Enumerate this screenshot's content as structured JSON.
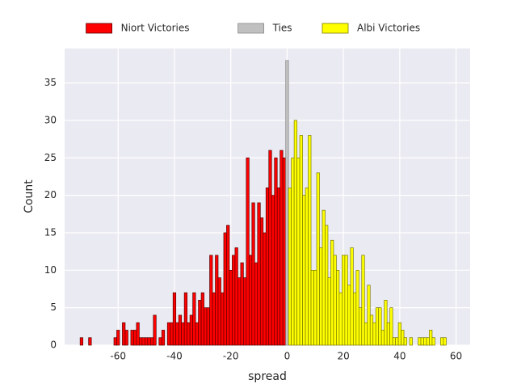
{
  "chart_data": {
    "type": "histogram",
    "xlabel": "spread",
    "ylabel": "Count",
    "xlim": [
      -79,
      65
    ],
    "ylim": [
      0,
      39.6
    ],
    "xticks": [
      -60,
      -40,
      -20,
      0,
      20,
      40,
      60
    ],
    "yticks": [
      0,
      5,
      10,
      15,
      20,
      25,
      30,
      35
    ],
    "grid": true,
    "legend": "top",
    "series": [
      {
        "name": "Niort Victories",
        "color": "#ff0000",
        "edgecolor": "#5a0000",
        "bins": [
          -73.5,
          -72.5,
          -71.5,
          -70.5,
          -69.5,
          -68.5,
          -67.5,
          -66.5,
          -65.5,
          -64.5,
          -63.5,
          -62.5,
          -61.5,
          -60.5,
          -59.5,
          -58.5,
          -57.5,
          -56.5,
          -55.5,
          -54.5,
          -53.5,
          -52.5,
          -51.5,
          -50.5,
          -49.5,
          -48.5,
          -47.5,
          -46.5,
          -45.5,
          -44.5,
          -43.5,
          -42.5,
          -41.5,
          -40.5,
          -39.5,
          -38.5,
          -37.5,
          -36.5,
          -35.5,
          -34.5,
          -33.5,
          -32.5,
          -31.5,
          -30.5,
          -29.5,
          -28.5,
          -27.5,
          -26.5,
          -25.5,
          -24.5,
          -23.5,
          -22.5,
          -21.5,
          -20.5,
          -19.5,
          -18.5,
          -17.5,
          -16.5,
          -15.5,
          -14.5,
          -13.5,
          -12.5,
          -11.5,
          -10.5,
          -9.5,
          -8.5,
          -7.5,
          -6.5,
          -5.5,
          -4.5,
          -3.5,
          -2.5,
          -1.5,
          -0.5
        ],
        "values": [
          1,
          0,
          0,
          1,
          0,
          0,
          0,
          0,
          0,
          0,
          0,
          0,
          1,
          2,
          0,
          3,
          2,
          0,
          2,
          2,
          3,
          1,
          1,
          1,
          1,
          1,
          4,
          0,
          1,
          2,
          0,
          3,
          3,
          7,
          3,
          4,
          3,
          7,
          3,
          4,
          7,
          3,
          6,
          7,
          5,
          5,
          12,
          7,
          12,
          9,
          7,
          15,
          16,
          10,
          12,
          13,
          9,
          11,
          9,
          25,
          12,
          19,
          11,
          19,
          17,
          15,
          21,
          26,
          20,
          25,
          21,
          26,
          25
        ]
      },
      {
        "name": "Ties",
        "color": "#c0c0c0",
        "edgecolor": "#8a8a8a",
        "bins": [
          -0.5,
          0.5
        ],
        "values": [
          38
        ]
      },
      {
        "name": "Albi Victories",
        "color": "#ffff00",
        "edgecolor": "#7a7a00",
        "bins": [
          0.5,
          1.5,
          2.5,
          3.5,
          4.5,
          5.5,
          6.5,
          7.5,
          8.5,
          9.5,
          10.5,
          11.5,
          12.5,
          13.5,
          14.5,
          15.5,
          16.5,
          17.5,
          18.5,
          19.5,
          20.5,
          21.5,
          22.5,
          23.5,
          24.5,
          25.5,
          26.5,
          27.5,
          28.5,
          29.5,
          30.5,
          31.5,
          32.5,
          33.5,
          34.5,
          35.5,
          36.5,
          37.5,
          38.5,
          39.5,
          40.5,
          41.5,
          42.5,
          43.5,
          44.5,
          45.5,
          46.5,
          47.5,
          48.5,
          49.5,
          50.5,
          51.5,
          52.5,
          53.5,
          54.5,
          55.5,
          56.5
        ],
        "values": [
          21,
          25,
          30,
          25,
          28,
          20,
          21,
          28,
          10,
          10,
          23,
          13,
          18,
          16,
          9,
          14,
          12,
          10,
          7,
          12,
          12,
          8,
          13,
          7,
          10,
          5,
          12,
          3,
          8,
          4,
          3,
          5,
          5,
          2,
          6,
          3,
          5,
          1,
          1,
          3,
          2,
          1,
          0,
          1,
          0,
          0,
          1,
          1,
          1,
          1,
          2,
          1,
          0,
          0,
          1,
          1
        ]
      }
    ]
  }
}
